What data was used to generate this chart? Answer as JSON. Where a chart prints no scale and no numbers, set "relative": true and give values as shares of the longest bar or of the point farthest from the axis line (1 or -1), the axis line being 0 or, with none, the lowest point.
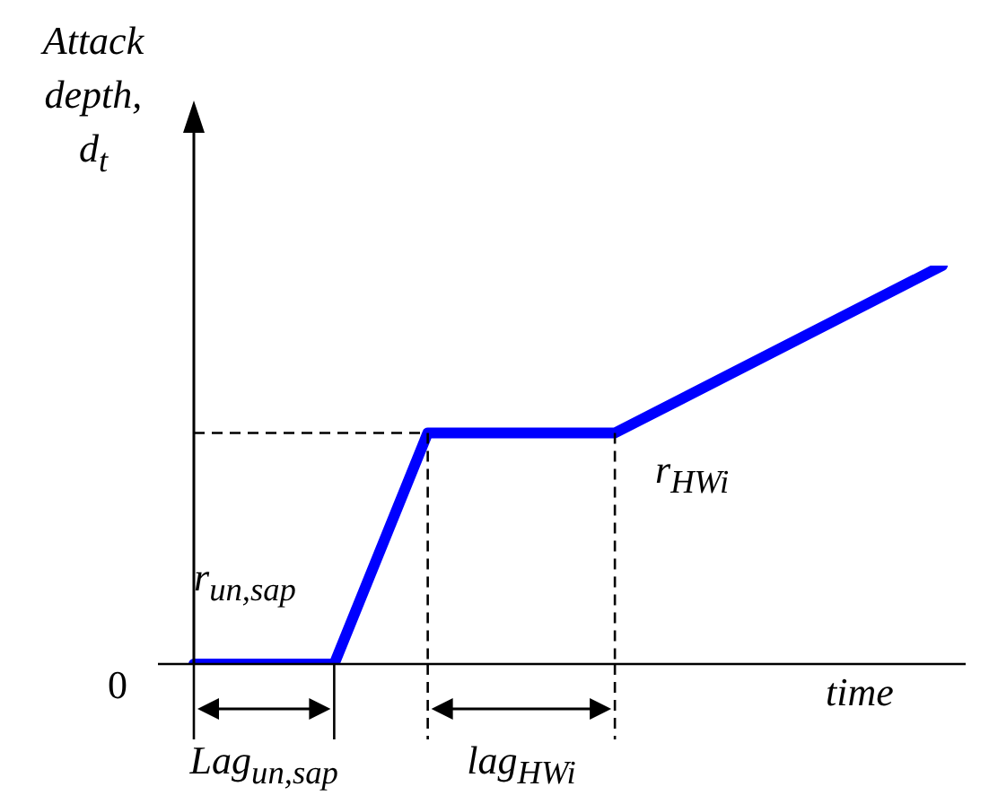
{
  "chart_data": {
    "type": "line",
    "relative": true,
    "xlabel": "time",
    "ylabel": "Attack depth, d$_{t}$",
    "categories": [
      null,
      null,
      null,
      null,
      null,
      null,
      null,
      null,
      null,
      null,
      null,
      null,
      null,
      null,
      null,
      null,
      null
    ],
    "series": [
      {
        "color": "#0000ff",
        "values": [
          0,
          null,
          null,
          0,
          null,
          0.58,
          null,
          null,
          null,
          0.58,
          null,
          null,
          null,
          null,
          null,
          null,
          1
        ]
      }
    ],
    "marker": "none",
    "line_style": "solid",
    "ref_lines": [
      {
        "axis": "y",
        "value": 0.58,
        "line_style": "dashed",
        "color": "#000000"
      }
    ],
    "annotations": [
      "0",
      "r$_{un,sap}$",
      "r$_{HWi}$",
      "Lag$_{un,sap}$",
      "lag$_{HWi}$"
    ]
  }
}
